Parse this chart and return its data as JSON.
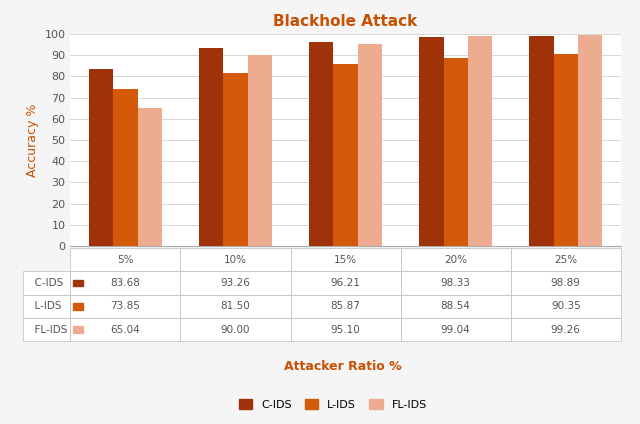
{
  "title": "Blackhole Attack",
  "title_color": "#C85000",
  "xlabel": "Attacker Ratio %",
  "xlabel_color": "#C85000",
  "ylabel": "Accuracy %",
  "ylabel_color": "#C85000",
  "categories": [
    "5%",
    "10%",
    "15%",
    "20%",
    "25%"
  ],
  "series": {
    "C-IDS": [
      83.68,
      93.26,
      96.21,
      98.33,
      98.89
    ],
    "L-IDS": [
      73.85,
      81.5,
      85.87,
      88.54,
      90.35
    ],
    "FL-IDS": [
      65.04,
      90.0,
      95.1,
      99.04,
      99.26
    ]
  },
  "colors": {
    "C-IDS": "#A0320A",
    "L-IDS": "#D45A0A",
    "FL-IDS": "#EDAB90"
  },
  "ylim": [
    0,
    100
  ],
  "yticks": [
    0,
    10,
    20,
    30,
    40,
    50,
    60,
    70,
    80,
    90,
    100
  ],
  "bar_width": 0.22,
  "legend_labels": [
    "C-IDS",
    "L-IDS",
    "FL-IDS"
  ],
  "table_row_labels": [
    "C-IDS",
    "L-IDS",
    "FL-IDS"
  ],
  "background_color": "#FFFFFF",
  "grid_color": "#D8D8D8",
  "figure_bg": "#F5F5F5"
}
